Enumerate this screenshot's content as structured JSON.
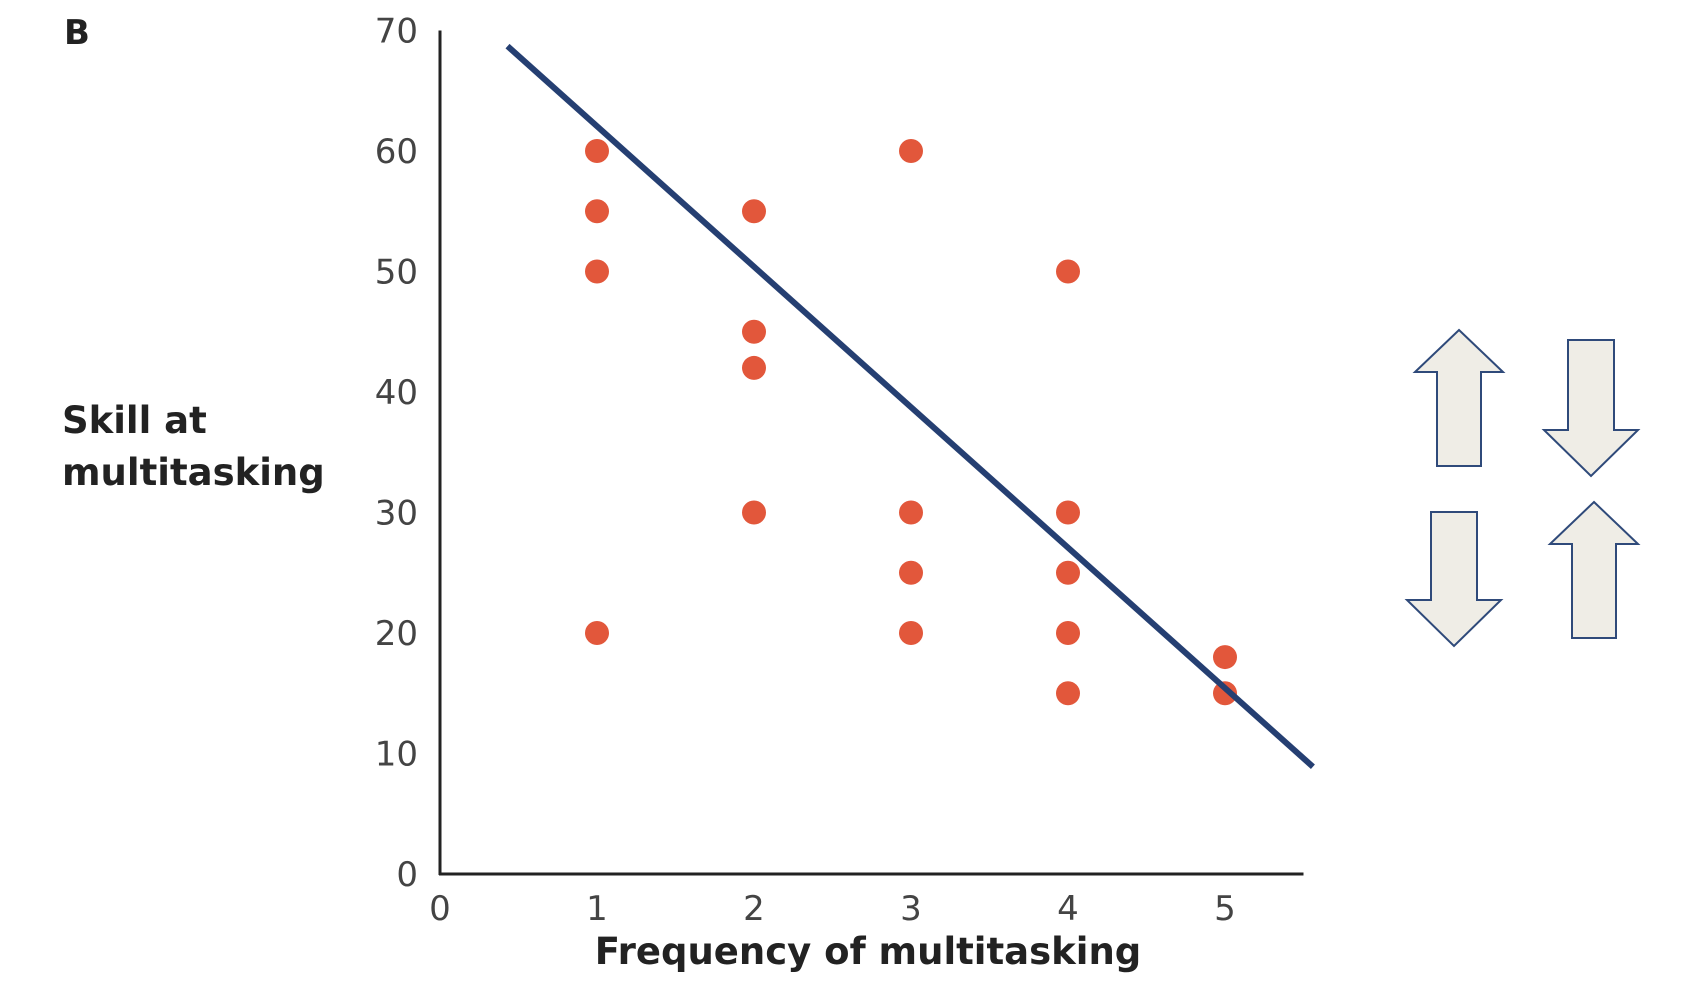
{
  "panel_label": "B",
  "colors": {
    "point": "#e2573b",
    "trend_line": "#253f72",
    "axis": "#222222",
    "arrow_fill": "#efede6",
    "arrow_stroke": "#2f4a7a"
  },
  "chart_data": {
    "type": "scatter",
    "title": "",
    "xlabel": "Frequency of multitasking",
    "ylabel_lines": [
      "Skill at",
      "multitasking"
    ],
    "xlim": [
      0,
      5.5
    ],
    "ylim": [
      0,
      70
    ],
    "x_ticks": [
      0,
      1,
      2,
      3,
      4,
      5
    ],
    "y_ticks": [
      0,
      10,
      20,
      30,
      40,
      50,
      60,
      70
    ],
    "grid": false,
    "points": [
      {
        "x": 1,
        "y": 60
      },
      {
        "x": 1,
        "y": 55
      },
      {
        "x": 1,
        "y": 50
      },
      {
        "x": 1,
        "y": 20
      },
      {
        "x": 2,
        "y": 55
      },
      {
        "x": 2,
        "y": 45
      },
      {
        "x": 2,
        "y": 42
      },
      {
        "x": 2,
        "y": 30
      },
      {
        "x": 3,
        "y": 60
      },
      {
        "x": 3,
        "y": 30
      },
      {
        "x": 3,
        "y": 25
      },
      {
        "x": 3,
        "y": 20
      },
      {
        "x": 4,
        "y": 50
      },
      {
        "x": 4,
        "y": 30
      },
      {
        "x": 4,
        "y": 25
      },
      {
        "x": 4,
        "y": 20
      },
      {
        "x": 4,
        "y": 15
      },
      {
        "x": 5,
        "y": 18
      },
      {
        "x": 5,
        "y": 15
      }
    ],
    "trend_line": {
      "x1": 0.43,
      "y1": 68.7,
      "x2": 5.56,
      "y2": 8.9
    }
  },
  "arrows": [
    {
      "name": "up-arrow-top-left-icon",
      "direction": "up"
    },
    {
      "name": "down-arrow-top-right-icon",
      "direction": "down"
    },
    {
      "name": "down-arrow-bottom-left-icon",
      "direction": "down"
    },
    {
      "name": "up-arrow-bottom-right-icon",
      "direction": "up"
    }
  ]
}
